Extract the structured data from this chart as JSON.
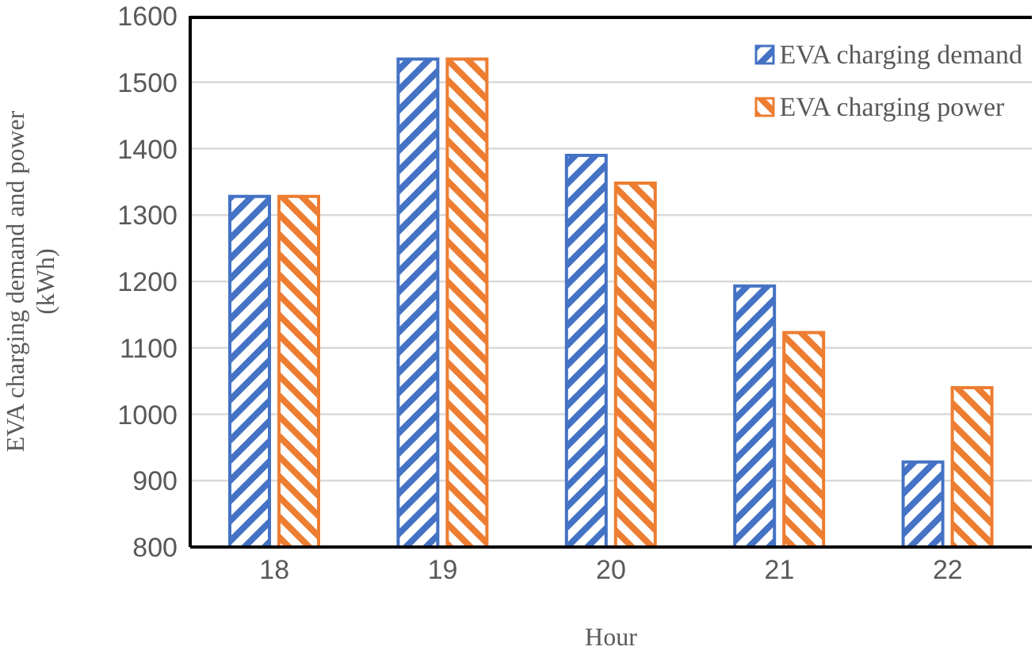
{
  "chart_data": {
    "type": "bar",
    "xlabel": "Hour",
    "ylabel": "EVA charging demand and power (kWh)",
    "categories": [
      "18",
      "19",
      "20",
      "21",
      "22"
    ],
    "series": [
      {
        "name": "EVA charging demand",
        "color": "#4472c4",
        "values": [
          1328,
          1535,
          1390,
          1193,
          928
        ]
      },
      {
        "name": "EVA charging power",
        "color": "#ed7d31",
        "values": [
          1328,
          1535,
          1348,
          1123,
          1040
        ]
      }
    ],
    "ylim": [
      800,
      1600
    ],
    "yticks": [
      800,
      900,
      1000,
      1100,
      1200,
      1300,
      1400,
      1500,
      1600
    ],
    "grid": "y",
    "legend": "top right"
  }
}
